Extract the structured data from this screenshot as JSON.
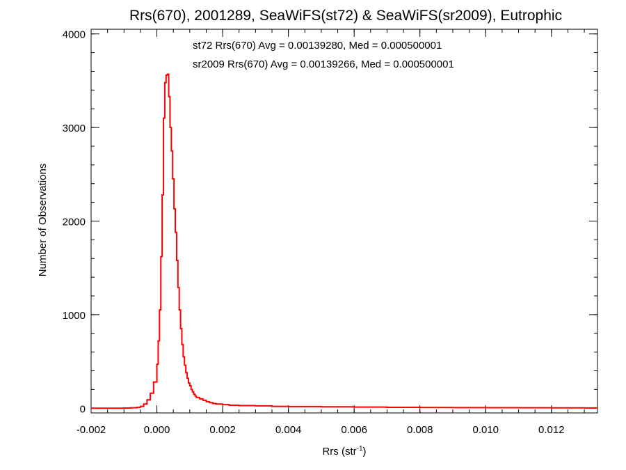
{
  "chart_data": {
    "type": "line",
    "title": "Rrs(670), 2001289, SeaWiFS(st72) & SeaWiFS(sr2009), Eutrophic",
    "xlabel_main": "Rrs (str",
    "xlabel_sup": "-1",
    "xlabel_close": ")",
    "ylabel": "Number of Observations",
    "xlim": [
      -0.002,
      0.0134
    ],
    "ylim": [
      -50,
      4050
    ],
    "x_ticks": [
      -0.002,
      0.0,
      0.002,
      0.004,
      0.006,
      0.008,
      0.01,
      0.012
    ],
    "x_tick_labels": [
      "-0.002",
      "0.000",
      "0.002",
      "0.004",
      "0.006",
      "0.008",
      "0.010",
      "0.012"
    ],
    "y_ticks": [
      0,
      1000,
      2000,
      3000,
      4000
    ],
    "y_tick_labels": [
      "0",
      "1000",
      "2000",
      "3000",
      "4000"
    ],
    "x_minor_step": 0.0005,
    "y_minor_step": 200,
    "grid": false,
    "annotations": [
      {
        "text": "st72 Rrs(670) Avg = 0.00139280, Med = 0.000500001",
        "color": "#000000"
      },
      {
        "text": "sr2009 Rrs(670) Avg = 0.00139266, Med = 0.000500001",
        "color": "#ff0000"
      }
    ],
    "series": [
      {
        "color": "#ff0000",
        "style": "histogram-step",
        "x": [
          -0.002,
          -0.0015,
          -0.001,
          -0.0008,
          -0.0006,
          -0.0005,
          -0.0004,
          -0.0003,
          -0.0002,
          -0.0001,
          0.0,
          4e-05,
          8e-05,
          0.00012,
          0.00016,
          0.0002,
          0.00024,
          0.00028,
          0.00032,
          0.00036,
          0.0004,
          0.00044,
          0.00048,
          0.00052,
          0.00056,
          0.0006,
          0.00064,
          0.00068,
          0.00072,
          0.00076,
          0.0008,
          0.00084,
          0.00088,
          0.00092,
          0.00096,
          0.001,
          0.00104,
          0.00108,
          0.00112,
          0.00116,
          0.0012,
          0.0013,
          0.0014,
          0.0015,
          0.0016,
          0.0017,
          0.0018,
          0.002,
          0.0022,
          0.0025,
          0.003,
          0.0035,
          0.004,
          0.005,
          0.006,
          0.007,
          0.008,
          0.009,
          0.01,
          0.011,
          0.012,
          0.013
        ],
        "y": [
          0,
          0,
          2,
          5,
          10,
          20,
          45,
          90,
          160,
          280,
          470,
          720,
          1050,
          1620,
          2280,
          3100,
          3480,
          3560,
          3570,
          3330,
          3000,
          2750,
          2450,
          2130,
          1880,
          1580,
          1290,
          1050,
          850,
          680,
          550,
          460,
          380,
          320,
          270,
          240,
          200,
          175,
          150,
          130,
          115,
          100,
          85,
          70,
          60,
          50,
          45,
          38,
          32,
          28,
          25,
          20,
          18,
          15,
          12,
          10,
          8,
          7,
          6,
          5,
          4,
          3
        ]
      }
    ]
  }
}
